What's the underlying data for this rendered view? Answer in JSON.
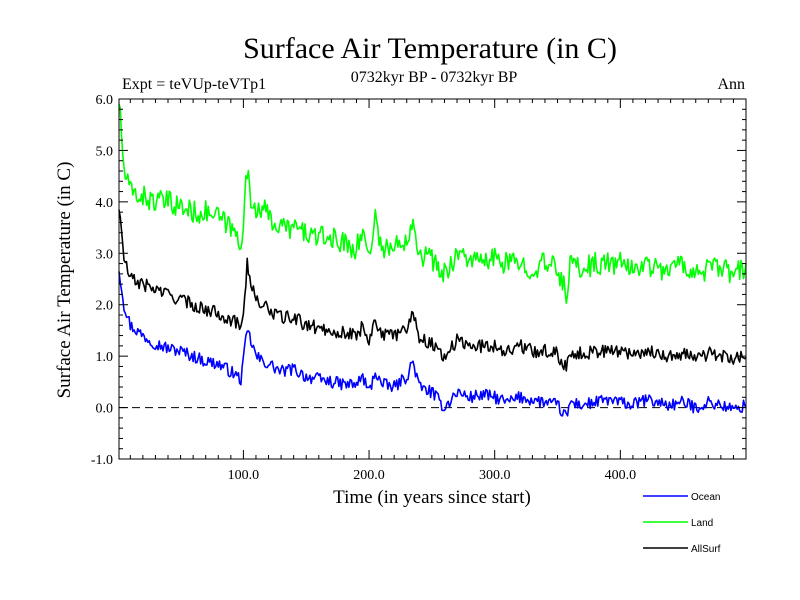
{
  "header": {
    "title": "Surface Air Temperature (in C)",
    "experiment": "Expt = teVUp-teVTp1",
    "period": "0732kyr BP - 0732kyr BP",
    "season": "Ann"
  },
  "chart_data": {
    "type": "line",
    "title": "Surface Air Temperature (in C)",
    "xlabel": "Time (in years since start)",
    "ylabel": "Surface Air Temperature (in C)",
    "xlim": [
      1,
      500
    ],
    "ylim": [
      -1.0,
      6.0
    ],
    "x_ticks": [
      100,
      200,
      300,
      400
    ],
    "x_tick_labels": [
      "100.0",
      "200.0",
      "300.0",
      "400.0"
    ],
    "y_ticks": [
      -1,
      0,
      1,
      2,
      3,
      4,
      5,
      6
    ],
    "y_tick_labels": [
      "-1.0",
      "0.0",
      "1.0",
      "2.0",
      "3.0",
      "4.0",
      "5.0",
      "6.0"
    ],
    "reference_line": {
      "y": 0,
      "style": "dashed"
    },
    "legend_position": "bottom-right",
    "series": [
      {
        "name": "Ocean",
        "color": "#0000ff",
        "x": [
          1,
          5,
          10,
          20,
          30,
          40,
          50,
          60,
          70,
          80,
          90,
          98,
          100,
          103,
          106,
          110,
          115,
          120,
          130,
          140,
          150,
          160,
          170,
          180,
          190,
          195,
          200,
          205,
          210,
          220,
          230,
          235,
          240,
          250,
          255,
          260,
          270,
          280,
          290,
          300,
          310,
          320,
          330,
          340,
          350,
          357,
          360,
          370,
          380,
          390,
          400,
          410,
          420,
          430,
          440,
          450,
          460,
          470,
          480,
          490,
          500
        ],
        "y": [
          2.7,
          2.0,
          1.6,
          1.4,
          1.25,
          1.15,
          1.1,
          1.0,
          0.9,
          0.85,
          0.7,
          0.55,
          0.9,
          1.5,
          1.3,
          1.0,
          0.9,
          0.85,
          0.7,
          0.75,
          0.6,
          0.55,
          0.5,
          0.45,
          0.45,
          0.6,
          0.3,
          0.7,
          0.45,
          0.4,
          0.6,
          0.9,
          0.4,
          0.3,
          0.15,
          0.0,
          0.3,
          0.2,
          0.25,
          0.2,
          0.1,
          0.2,
          0.15,
          0.1,
          0.05,
          -0.2,
          0.1,
          0.05,
          0.1,
          0.15,
          0.1,
          0.05,
          0.15,
          0.1,
          0.05,
          0.1,
          0.0,
          0.1,
          0.05,
          -0.05,
          0.05
        ]
      },
      {
        "name": "Land",
        "color": "#00ff00",
        "x": [
          1,
          5,
          10,
          20,
          30,
          40,
          50,
          60,
          70,
          80,
          90,
          98,
          100,
          103,
          106,
          110,
          115,
          120,
          130,
          140,
          150,
          160,
          170,
          180,
          190,
          195,
          200,
          205,
          210,
          220,
          230,
          235,
          240,
          250,
          255,
          260,
          270,
          280,
          290,
          300,
          310,
          320,
          330,
          340,
          350,
          357,
          360,
          370,
          380,
          390,
          400,
          410,
          420,
          430,
          440,
          450,
          460,
          470,
          480,
          490,
          500
        ],
        "y": [
          6.0,
          4.6,
          4.2,
          4.1,
          4.0,
          4.0,
          3.9,
          3.8,
          3.8,
          3.7,
          3.5,
          3.2,
          3.7,
          4.6,
          4.0,
          3.9,
          3.9,
          3.7,
          3.5,
          3.5,
          3.4,
          3.3,
          3.3,
          3.2,
          3.1,
          3.4,
          3.0,
          3.7,
          3.1,
          3.1,
          3.3,
          3.7,
          3.0,
          2.9,
          2.7,
          2.6,
          3.0,
          2.9,
          2.8,
          2.9,
          2.8,
          2.8,
          2.7,
          2.8,
          2.7,
          2.2,
          2.8,
          2.7,
          2.8,
          2.8,
          2.8,
          2.7,
          2.8,
          2.7,
          2.7,
          2.8,
          2.6,
          2.7,
          2.7,
          2.6,
          2.7
        ]
      },
      {
        "name": "AllSurf",
        "color": "#000000",
        "x": [
          1,
          5,
          10,
          20,
          30,
          40,
          50,
          60,
          70,
          80,
          90,
          98,
          100,
          103,
          106,
          110,
          115,
          120,
          130,
          140,
          150,
          160,
          170,
          180,
          190,
          195,
          200,
          205,
          210,
          220,
          230,
          235,
          240,
          250,
          255,
          260,
          270,
          280,
          290,
          300,
          310,
          320,
          330,
          340,
          350,
          357,
          360,
          370,
          380,
          390,
          400,
          410,
          420,
          430,
          440,
          450,
          460,
          470,
          480,
          490,
          500
        ],
        "y": [
          3.9,
          2.9,
          2.5,
          2.4,
          2.3,
          2.2,
          2.1,
          2.0,
          1.9,
          1.85,
          1.7,
          1.6,
          1.9,
          2.8,
          2.4,
          2.1,
          2.0,
          1.9,
          1.75,
          1.75,
          1.6,
          1.55,
          1.5,
          1.45,
          1.4,
          1.6,
          1.3,
          1.75,
          1.4,
          1.4,
          1.55,
          1.9,
          1.35,
          1.25,
          1.1,
          1.0,
          1.3,
          1.2,
          1.2,
          1.2,
          1.1,
          1.2,
          1.1,
          1.1,
          1.05,
          0.75,
          1.1,
          1.05,
          1.1,
          1.1,
          1.1,
          1.05,
          1.1,
          1.05,
          1.0,
          1.05,
          0.95,
          1.05,
          1.0,
          0.95,
          1.05
        ]
      }
    ]
  }
}
